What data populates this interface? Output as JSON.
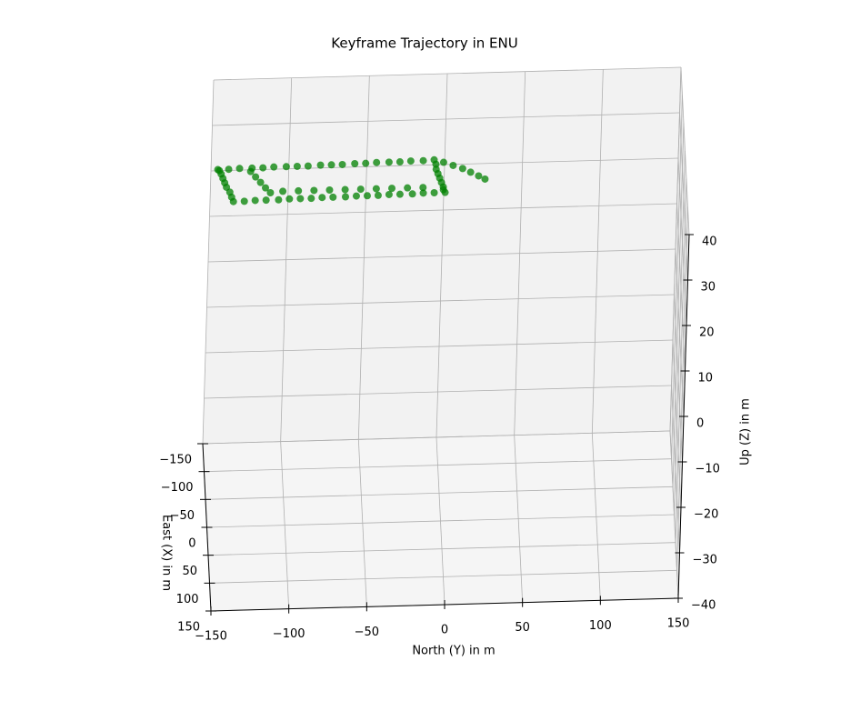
{
  "chart_data": {
    "type": "scatter3d",
    "title": "Keyframe Trajectory in ENU",
    "xlabel": "East (X) in m",
    "ylabel": "North (Y) in m",
    "zlabel": "Up (Z) in m",
    "color": "#008000",
    "grid": true,
    "xlim": [
      -150,
      150
    ],
    "ylim": [
      -150,
      150
    ],
    "zlim": [
      -40,
      40
    ],
    "xticks": [
      {
        "value": -150,
        "label": "−150"
      },
      {
        "value": -100,
        "label": "−100"
      },
      {
        "value": -50,
        "label": "−50"
      },
      0,
      50,
      100,
      150
    ],
    "yticks": [
      {
        "value": -150,
        "label": "−150"
      },
      {
        "value": -100,
        "label": "−100"
      },
      {
        "value": -50,
        "label": "−50"
      },
      0,
      50,
      100,
      150
    ],
    "zticks": [
      {
        "value": -40,
        "label": "−40"
      },
      {
        "value": -30,
        "label": "−30"
      },
      {
        "value": -20,
        "label": "−20"
      },
      {
        "value": -10,
        "label": "−10"
      },
      0,
      10,
      20,
      30,
      40
    ],
    "x": [
      -30,
      -30,
      -31,
      -31,
      -31,
      -32,
      -32,
      -32,
      -32,
      -33,
      -33,
      -33,
      -34,
      -34,
      -35,
      -35,
      -35,
      -36,
      -36,
      -37,
      -29,
      -20,
      -12,
      -4,
      4,
      12,
      17,
      22,
      22,
      22,
      23,
      23,
      23,
      24,
      24,
      24,
      25,
      25,
      25,
      26,
      26,
      26,
      27,
      27,
      27,
      28,
      28,
      20,
      11,
      2,
      -6,
      -14,
      -22,
      -28,
      -25,
      -15,
      -5,
      5,
      14,
      12,
      12,
      12,
      12,
      12,
      12,
      12,
      12,
      12,
      12,
      -32,
      -26,
      -20,
      -13,
      -6,
      0
    ],
    "y": [
      -149,
      -142,
      -135,
      -127,
      -120,
      -113,
      -105,
      -98,
      -91,
      -83,
      -76,
      -69,
      -61,
      -54,
      -47,
      -39,
      -32,
      -25,
      -17,
      -10,
      -9,
      -9,
      -8,
      -7,
      -6,
      -5,
      -5,
      -4,
      -11,
      -18,
      -25,
      -33,
      -40,
      -47,
      -54,
      -61,
      -68,
      -76,
      -83,
      -90,
      -97,
      -104,
      -111,
      -119,
      -126,
      -133,
      -140,
      -141,
      -142,
      -144,
      -145,
      -146,
      -147,
      -148,
      -128,
      -125,
      -122,
      -119,
      -116,
      -108,
      -98,
      -88,
      -78,
      -68,
      -58,
      -48,
      -38,
      -28,
      -18,
      -4,
      2,
      8,
      13,
      18,
      22
    ],
    "z": [
      35,
      35,
      35,
      35,
      35,
      35,
      35,
      35,
      35,
      35,
      35,
      35,
      35,
      35,
      35,
      35,
      35,
      35,
      35,
      35,
      35,
      35,
      35,
      35,
      35,
      35,
      35,
      35,
      35,
      35,
      35,
      35,
      35,
      35,
      35,
      35,
      35,
      35,
      35,
      35,
      35,
      35,
      35,
      35,
      35,
      35,
      35,
      35,
      35,
      35,
      35,
      35,
      35,
      35,
      35,
      35,
      35,
      35,
      35,
      35,
      35,
      35,
      35,
      35,
      35,
      35,
      35,
      35,
      35,
      35,
      35,
      35,
      35,
      35,
      35
    ]
  }
}
